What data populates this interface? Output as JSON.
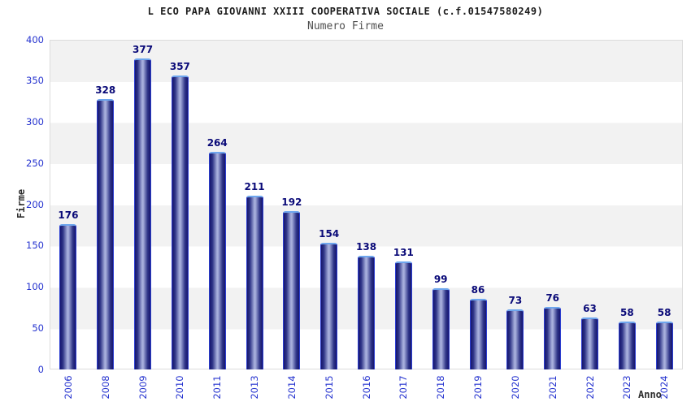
{
  "title": "L ECO PAPA GIOVANNI XXIII COOPERATIVA SOCIALE (c.f.01547580249)",
  "subtitle": "Numero Firme",
  "chart_data": {
    "type": "bar",
    "title": "L ECO PAPA GIOVANNI XXIII COOPERATIVA SOCIALE (c.f.01547580249)",
    "subtitle": "Numero Firme",
    "xlabel": "Anno",
    "ylabel": "Firme",
    "categories": [
      "2006",
      "2008",
      "2009",
      "2010",
      "2011",
      "2013",
      "2014",
      "2015",
      "2016",
      "2017",
      "2018",
      "2019",
      "2020",
      "2021",
      "2022",
      "2023",
      "2024"
    ],
    "values": [
      176,
      328,
      377,
      357,
      264,
      211,
      192,
      154,
      138,
      131,
      99,
      86,
      73,
      76,
      63,
      58,
      58
    ],
    "ylim": [
      0,
      400
    ],
    "yticks": [
      0,
      50,
      100,
      150,
      200,
      250,
      300,
      350,
      400
    ],
    "grid": "horizontal-bands-every-50",
    "legend": "none",
    "bar_labels": "above-bars",
    "x_tick_rotation": -90
  },
  "colors": {
    "band_gray": "#f2f2f2",
    "plot_border": "#dcdcdc",
    "tick_label": "#2533cf",
    "value_label": "#0a0a78",
    "bar_cap": "#6ea6ee",
    "bar_side": "#2c3ed0",
    "bar_dark": "#16166e",
    "bar_center": "#a2aad9",
    "title_color": "#1c1c1c",
    "subtitle_color": "#505050",
    "axis_title_color": "#2e2e2e"
  }
}
